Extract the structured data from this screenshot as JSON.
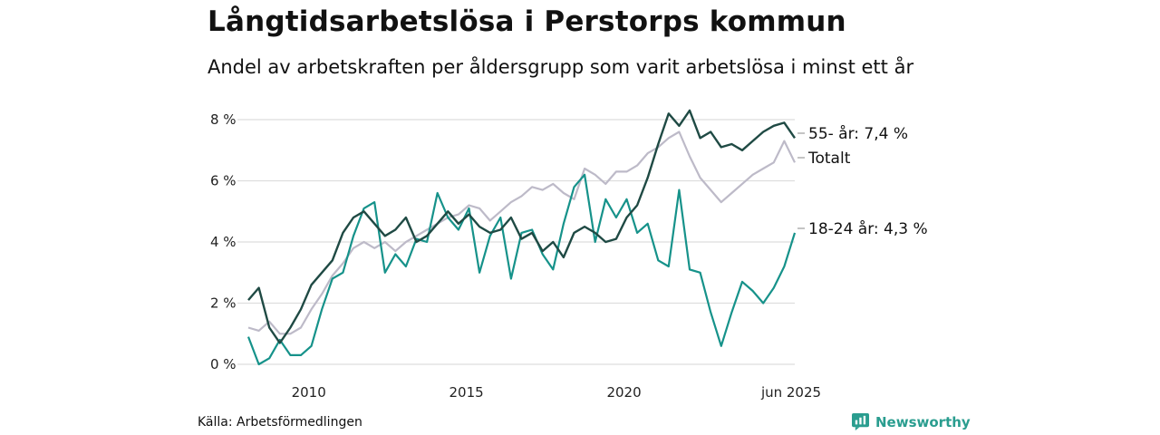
{
  "title": "Långtidsarbetslösa i Perstorps kommun",
  "subtitle": "Andel av arbetskraften per åldersgrupp som varit arbetslösa i minst ett år",
  "source": "Källa: Arbetsförmedlingen",
  "brand": {
    "name": "Newsworthy",
    "icon": "newsworthy-logo-icon"
  },
  "colors": {
    "total": "#bdbac8",
    "age55": "#1f4a44",
    "age1824": "#16928a",
    "grid": "#dedede",
    "brand": "#2a9d8f"
  },
  "chart_data": {
    "type": "line",
    "y_unit": "%",
    "ylim": [
      0,
      8.5
    ],
    "yticks": [
      0,
      2,
      4,
      6,
      8
    ],
    "ytick_labels": [
      "0 %",
      "2 %",
      "4 %",
      "6 %",
      "8 %"
    ],
    "xlim": [
      "2008-02",
      "2025-06"
    ],
    "xticks": [
      "2010-01",
      "2015-01",
      "2020-01",
      "2025-06"
    ],
    "xtick_labels": [
      "2010",
      "2015",
      "2020",
      "jun 2025"
    ],
    "grid": true,
    "series": [
      {
        "key": "total",
        "name": "Totalt",
        "end_label": "Totalt",
        "points": [
          [
            "2008-02",
            1.2
          ],
          [
            "2008-06",
            1.1
          ],
          [
            "2008-10",
            1.4
          ],
          [
            "2009-02",
            1.0
          ],
          [
            "2009-06",
            1.0
          ],
          [
            "2009-10",
            1.2
          ],
          [
            "2010-02",
            1.8
          ],
          [
            "2010-06",
            2.3
          ],
          [
            "2010-10",
            2.9
          ],
          [
            "2011-02",
            3.3
          ],
          [
            "2011-06",
            3.8
          ],
          [
            "2011-10",
            4.0
          ],
          [
            "2012-02",
            3.8
          ],
          [
            "2012-06",
            4.0
          ],
          [
            "2012-10",
            3.7
          ],
          [
            "2013-02",
            4.0
          ],
          [
            "2013-06",
            4.2
          ],
          [
            "2013-10",
            4.4
          ],
          [
            "2014-02",
            4.6
          ],
          [
            "2014-06",
            4.8
          ],
          [
            "2014-10",
            4.9
          ],
          [
            "2015-02",
            5.2
          ],
          [
            "2015-06",
            5.1
          ],
          [
            "2015-10",
            4.7
          ],
          [
            "2016-02",
            5.0
          ],
          [
            "2016-06",
            5.3
          ],
          [
            "2016-10",
            5.5
          ],
          [
            "2017-02",
            5.8
          ],
          [
            "2017-06",
            5.7
          ],
          [
            "2017-10",
            5.9
          ],
          [
            "2018-02",
            5.6
          ],
          [
            "2018-06",
            5.4
          ],
          [
            "2018-10",
            6.4
          ],
          [
            "2019-02",
            6.2
          ],
          [
            "2019-06",
            5.9
          ],
          [
            "2019-10",
            6.3
          ],
          [
            "2020-02",
            6.3
          ],
          [
            "2020-06",
            6.5
          ],
          [
            "2020-10",
            6.9
          ],
          [
            "2021-02",
            7.1
          ],
          [
            "2021-06",
            7.4
          ],
          [
            "2021-10",
            7.6
          ],
          [
            "2022-02",
            6.8
          ],
          [
            "2022-06",
            6.1
          ],
          [
            "2022-10",
            5.7
          ],
          [
            "2023-02",
            5.3
          ],
          [
            "2023-06",
            5.6
          ],
          [
            "2023-10",
            5.9
          ],
          [
            "2024-02",
            6.2
          ],
          [
            "2024-06",
            6.4
          ],
          [
            "2024-10",
            6.6
          ],
          [
            "2025-02",
            7.3
          ],
          [
            "2025-06",
            6.6
          ]
        ]
      },
      {
        "key": "age55",
        "name": "55- år",
        "end_label": "55- år: 7,4 %",
        "points": [
          [
            "2008-02",
            2.1
          ],
          [
            "2008-06",
            2.5
          ],
          [
            "2008-10",
            1.2
          ],
          [
            "2009-02",
            0.7
          ],
          [
            "2009-06",
            1.2
          ],
          [
            "2009-10",
            1.8
          ],
          [
            "2010-02",
            2.6
          ],
          [
            "2010-06",
            3.0
          ],
          [
            "2010-10",
            3.4
          ],
          [
            "2011-02",
            4.3
          ],
          [
            "2011-06",
            4.8
          ],
          [
            "2011-10",
            5.0
          ],
          [
            "2012-02",
            4.6
          ],
          [
            "2012-06",
            4.2
          ],
          [
            "2012-10",
            4.4
          ],
          [
            "2013-02",
            4.8
          ],
          [
            "2013-06",
            4.0
          ],
          [
            "2013-10",
            4.2
          ],
          [
            "2014-02",
            4.6
          ],
          [
            "2014-06",
            5.0
          ],
          [
            "2014-10",
            4.6
          ],
          [
            "2015-02",
            4.9
          ],
          [
            "2015-06",
            4.5
          ],
          [
            "2015-10",
            4.3
          ],
          [
            "2016-02",
            4.4
          ],
          [
            "2016-06",
            4.8
          ],
          [
            "2016-10",
            4.1
          ],
          [
            "2017-02",
            4.3
          ],
          [
            "2017-06",
            3.7
          ],
          [
            "2017-10",
            4.0
          ],
          [
            "2018-02",
            3.5
          ],
          [
            "2018-06",
            4.3
          ],
          [
            "2018-10",
            4.5
          ],
          [
            "2019-02",
            4.3
          ],
          [
            "2019-06",
            4.0
          ],
          [
            "2019-10",
            4.1
          ],
          [
            "2020-02",
            4.8
          ],
          [
            "2020-06",
            5.2
          ],
          [
            "2020-10",
            6.1
          ],
          [
            "2021-02",
            7.2
          ],
          [
            "2021-06",
            8.2
          ],
          [
            "2021-10",
            7.8
          ],
          [
            "2022-02",
            8.3
          ],
          [
            "2022-06",
            7.4
          ],
          [
            "2022-10",
            7.6
          ],
          [
            "2023-02",
            7.1
          ],
          [
            "2023-06",
            7.2
          ],
          [
            "2023-10",
            7.0
          ],
          [
            "2024-02",
            7.3
          ],
          [
            "2024-06",
            7.6
          ],
          [
            "2024-10",
            7.8
          ],
          [
            "2025-02",
            7.9
          ],
          [
            "2025-06",
            7.4
          ]
        ]
      },
      {
        "key": "age1824",
        "name": "18-24 år",
        "end_label": "18-24 år: 4,3 %",
        "points": [
          [
            "2008-02",
            0.9
          ],
          [
            "2008-06",
            0.0
          ],
          [
            "2008-10",
            0.2
          ],
          [
            "2009-02",
            0.8
          ],
          [
            "2009-06",
            0.3
          ],
          [
            "2009-10",
            0.3
          ],
          [
            "2010-02",
            0.6
          ],
          [
            "2010-06",
            1.8
          ],
          [
            "2010-10",
            2.8
          ],
          [
            "2011-02",
            3.0
          ],
          [
            "2011-06",
            4.2
          ],
          [
            "2011-10",
            5.1
          ],
          [
            "2012-02",
            5.3
          ],
          [
            "2012-06",
            3.0
          ],
          [
            "2012-10",
            3.6
          ],
          [
            "2013-02",
            3.2
          ],
          [
            "2013-06",
            4.1
          ],
          [
            "2013-10",
            4.0
          ],
          [
            "2014-02",
            5.6
          ],
          [
            "2014-06",
            4.8
          ],
          [
            "2014-10",
            4.4
          ],
          [
            "2015-02",
            5.1
          ],
          [
            "2015-06",
            3.0
          ],
          [
            "2015-10",
            4.2
          ],
          [
            "2016-02",
            4.8
          ],
          [
            "2016-06",
            2.8
          ],
          [
            "2016-10",
            4.3
          ],
          [
            "2017-02",
            4.4
          ],
          [
            "2017-06",
            3.6
          ],
          [
            "2017-10",
            3.1
          ],
          [
            "2018-02",
            4.6
          ],
          [
            "2018-06",
            5.8
          ],
          [
            "2018-10",
            6.2
          ],
          [
            "2019-02",
            4.0
          ],
          [
            "2019-06",
            5.4
          ],
          [
            "2019-10",
            4.8
          ],
          [
            "2020-02",
            5.4
          ],
          [
            "2020-06",
            4.3
          ],
          [
            "2020-10",
            4.6
          ],
          [
            "2021-02",
            3.4
          ],
          [
            "2021-06",
            3.2
          ],
          [
            "2021-10",
            5.7
          ],
          [
            "2022-02",
            3.1
          ],
          [
            "2022-06",
            3.0
          ],
          [
            "2022-10",
            1.7
          ],
          [
            "2023-02",
            0.6
          ],
          [
            "2023-06",
            1.7
          ],
          [
            "2023-10",
            2.7
          ],
          [
            "2024-02",
            2.4
          ],
          [
            "2024-06",
            2.0
          ],
          [
            "2024-10",
            2.5
          ],
          [
            "2025-02",
            3.2
          ],
          [
            "2025-06",
            4.3
          ]
        ]
      }
    ]
  }
}
